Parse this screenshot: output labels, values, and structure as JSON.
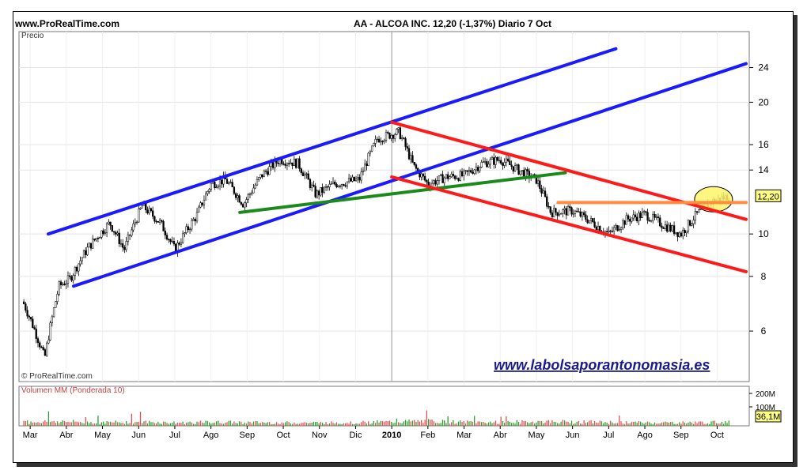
{
  "header": {
    "site": "www.ProRealTime.com",
    "title": "AA - ALCOA INC.   12,20 (-1,37%)   Diario  7 Oct"
  },
  "price_panel": {
    "label": "Precio",
    "copyright": "© ProRealTime.com",
    "watermark": "www.labolsaporantonomasia.es",
    "last_price_badge": "12,20"
  },
  "volume_panel": {
    "label": "Volumen MM (Ponderada 10)",
    "tick_labels": [
      "200M",
      "100M"
    ],
    "last_volume_badge": "36,1M"
  },
  "colors": {
    "channel_blue": "#1a1aff",
    "channel_red": "#ff1a1a",
    "trend_green": "#1a8a1a",
    "resistance_orange": "#ff8c40",
    "highlight_yellow": "#fff36b",
    "volume_up": "#2e9e2e",
    "volume_down": "#e05050",
    "watermark": "#1a1a8c"
  },
  "chart_data": {
    "type": "candlestick",
    "y_scale": "log",
    "ylim": [
      4.6,
      29
    ],
    "yticks": [
      6,
      8,
      10,
      14,
      16,
      20,
      24
    ],
    "x_labels": [
      "Mar",
      "Abr",
      "May",
      "Jun",
      "Jul",
      "Ago",
      "Sep",
      "Oct",
      "Nov",
      "Dic",
      "2010",
      "Feb",
      "Mar",
      "Abr",
      "May",
      "Jun",
      "Jul",
      "Ago",
      "Sep",
      "Oct"
    ],
    "x_label_positions": [
      0.0,
      1.0,
      2.0,
      3.0,
      4.0,
      5.0,
      6.0,
      7.0,
      8.0,
      9.0,
      10.0,
      11.0,
      12.0,
      13.0,
      14.0,
      15.0,
      16.0,
      17.0,
      18.0,
      19.0
    ],
    "price_path": [
      [
        -0.2,
        7.0
      ],
      [
        0.4,
        5.2
      ],
      [
        0.8,
        7.6
      ],
      [
        1.1,
        7.9
      ],
      [
        1.6,
        9.3
      ],
      [
        2.2,
        10.6
      ],
      [
        2.6,
        9.2
      ],
      [
        3.1,
        11.6
      ],
      [
        3.6,
        10.6
      ],
      [
        4.0,
        9.2
      ],
      [
        4.6,
        11.0
      ],
      [
        5.0,
        13.0
      ],
      [
        5.4,
        13.3
      ],
      [
        5.9,
        11.7
      ],
      [
        6.4,
        13.6
      ],
      [
        6.9,
        14.8
      ],
      [
        7.4,
        14.5
      ],
      [
        7.9,
        12.3
      ],
      [
        8.4,
        13.0
      ],
      [
        9.1,
        13.3
      ],
      [
        9.6,
        16.5
      ],
      [
        10.2,
        17.1
      ],
      [
        10.6,
        14.3
      ],
      [
        11.0,
        13.0
      ],
      [
        11.5,
        13.5
      ],
      [
        12.0,
        13.6
      ],
      [
        12.5,
        14.5
      ],
      [
        13.0,
        14.8
      ],
      [
        13.5,
        14.0
      ],
      [
        14.0,
        13.3
      ],
      [
        14.4,
        11.2
      ],
      [
        15.0,
        11.3
      ],
      [
        15.5,
        10.7
      ],
      [
        16.0,
        10.0
      ],
      [
        16.5,
        10.8
      ],
      [
        17.0,
        11.1
      ],
      [
        17.5,
        10.5
      ],
      [
        18.0,
        10.0
      ],
      [
        18.4,
        11.0
      ],
      [
        18.8,
        11.8
      ],
      [
        19.3,
        12.2
      ]
    ],
    "volume_path": [
      [
        -0.2,
        20
      ],
      [
        0.6,
        25
      ],
      [
        1.2,
        22
      ],
      [
        2.0,
        18
      ],
      [
        3.0,
        22
      ],
      [
        4.0,
        17
      ],
      [
        5.0,
        20
      ],
      [
        6.0,
        19
      ],
      [
        7.0,
        17
      ],
      [
        8.0,
        17
      ],
      [
        9.0,
        18
      ],
      [
        10.0,
        22
      ],
      [
        11.0,
        26
      ],
      [
        12.0,
        20
      ],
      [
        13.0,
        20
      ],
      [
        14.0,
        23
      ],
      [
        15.0,
        22
      ],
      [
        16.0,
        19
      ],
      [
        17.0,
        18
      ],
      [
        18.0,
        17
      ],
      [
        19.3,
        20
      ]
    ],
    "lines": [
      {
        "name": "upper-blue-channel",
        "color": "blue",
        "points": [
          [
            0.5,
            10.0
          ],
          [
            16.2,
            26.5
          ]
        ]
      },
      {
        "name": "lower-blue-channel",
        "color": "blue",
        "points": [
          [
            1.2,
            7.6
          ],
          [
            19.8,
            24.5
          ]
        ]
      },
      {
        "name": "green-trendline",
        "color": "green",
        "points": [
          [
            5.8,
            11.2
          ],
          [
            14.8,
            13.8
          ]
        ]
      },
      {
        "name": "upper-red-channel",
        "color": "red",
        "points": [
          [
            10.0,
            18.0
          ],
          [
            19.8,
            10.8
          ]
        ]
      },
      {
        "name": "lower-red-channel",
        "color": "red",
        "points": [
          [
            10.0,
            13.5
          ],
          [
            19.8,
            8.2
          ]
        ]
      },
      {
        "name": "orange-resistance",
        "color": "orange",
        "points": [
          [
            14.6,
            11.8
          ],
          [
            19.8,
            11.8
          ]
        ]
      }
    ],
    "highlight": {
      "x": 18.9,
      "y": 12.0
    },
    "last_price": 12.2,
    "last_volume": 36.1
  }
}
